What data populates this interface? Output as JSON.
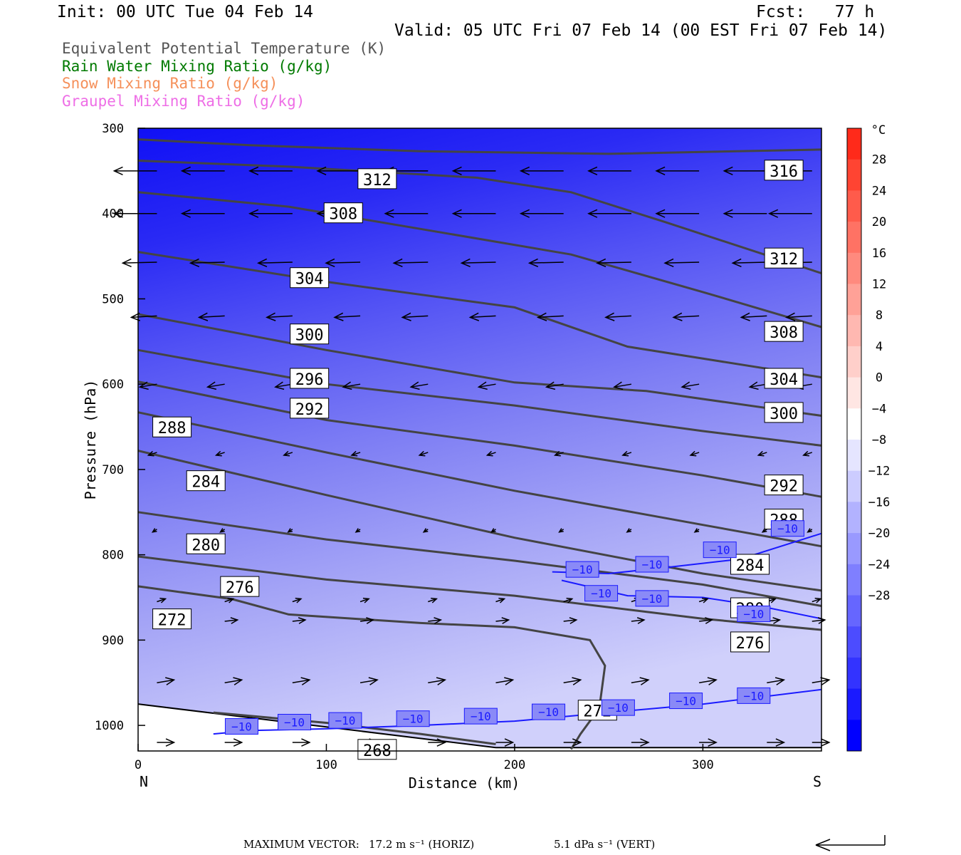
{
  "header": {
    "init": "Init: 00 UTC Tue 04 Feb 14",
    "fcst": "Fcst:   77 h",
    "valid": "Valid: 05 UTC Fri 07 Feb 14 (00 EST Fri 07 Feb 14)",
    "legend": [
      {
        "text": "Equivalent Potential Temperature (K)",
        "color": "#555555"
      },
      {
        "text": "Rain Water Mixing Ratio (g/kg)",
        "color": "#007a00"
      },
      {
        "text": "Snow Mixing Ratio (g/kg)",
        "color": "#f5905a"
      },
      {
        "text": "Graupel Mixing Ratio (g/kg)",
        "color": "#ee6ee6"
      }
    ]
  },
  "footer": {
    "max_vector_label": "MAXIMUM VECTOR:",
    "horiz": "17.2 m s⁻¹ (HORIZ)",
    "vert": "5.1 dPa s⁻¹ (VERT)"
  },
  "chart_data": {
    "type": "heatmap",
    "xlabel": "Distance (km)",
    "ylabel": "Pressure (hPa)",
    "xlim": [
      0,
      363
    ],
    "ylim": [
      1030,
      300
    ],
    "x_ticks": [
      0,
      100,
      200,
      300
    ],
    "y_ticks": [
      300,
      400,
      500,
      600,
      700,
      800,
      900,
      1000
    ],
    "x_end_labels": {
      "left": "N",
      "right": "S"
    },
    "colorbar": {
      "unit": "°C",
      "labels": [
        28,
        24,
        20,
        16,
        12,
        8,
        4,
        0,
        -4,
        -8,
        -12,
        -16,
        -20,
        -24,
        -28
      ],
      "colors": [
        "#ff2a1a",
        "#ff4432",
        "#ff5b4b",
        "#ff7264",
        "#ff8a7e",
        "#ffa197",
        "#ffb8b1",
        "#ffcfca",
        "#ffe6e3",
        "#ffffff",
        "#e5e5ff",
        "#ccccff",
        "#b2b2ff",
        "#9999ff",
        "#7f7fff",
        "#6666ff",
        "#4c4cff",
        "#3333ff",
        "#1a1aff",
        "#0000ff"
      ]
    },
    "theta_e_contours": [
      {
        "value": 316,
        "points": [
          [
            0,
            313
          ],
          [
            60,
            320
          ],
          [
            150,
            327
          ],
          [
            250,
            330
          ],
          [
            363,
            325
          ]
        ]
      },
      {
        "value": 312,
        "points": [
          [
            0,
            338
          ],
          [
            80,
            345
          ],
          [
            180,
            358
          ],
          [
            230,
            375
          ],
          [
            280,
            410
          ],
          [
            363,
            470
          ]
        ]
      },
      {
        "value": 308,
        "points": [
          [
            0,
            375
          ],
          [
            80,
            392
          ],
          [
            150,
            418
          ],
          [
            230,
            448
          ],
          [
            300,
            492
          ],
          [
            363,
            533
          ]
        ]
      },
      {
        "value": 304,
        "points": [
          [
            0,
            445
          ],
          [
            100,
            480
          ],
          [
            200,
            510
          ],
          [
            260,
            556
          ],
          [
            363,
            592
          ]
        ]
      },
      {
        "value": 300,
        "points": [
          [
            0,
            518
          ],
          [
            100,
            560
          ],
          [
            200,
            598
          ],
          [
            270,
            608
          ],
          [
            363,
            637
          ]
        ]
      },
      {
        "value": 296,
        "points": [
          [
            0,
            560
          ],
          [
            100,
            600
          ],
          [
            200,
            625
          ],
          [
            300,
            655
          ],
          [
            363,
            672
          ]
        ]
      },
      {
        "value": 292,
        "points": [
          [
            0,
            597
          ],
          [
            100,
            642
          ],
          [
            200,
            672
          ],
          [
            300,
            707
          ],
          [
            363,
            732
          ]
        ]
      },
      {
        "value": 288,
        "points": [
          [
            0,
            633
          ],
          [
            100,
            680
          ],
          [
            200,
            725
          ],
          [
            300,
            765
          ],
          [
            363,
            790
          ]
        ]
      },
      {
        "value": 284,
        "points": [
          [
            0,
            678
          ],
          [
            100,
            730
          ],
          [
            200,
            780
          ],
          [
            300,
            822
          ],
          [
            363,
            842
          ]
        ]
      },
      {
        "value": 280,
        "points": [
          [
            0,
            750
          ],
          [
            100,
            782
          ],
          [
            200,
            807
          ],
          [
            300,
            835
          ],
          [
            363,
            860
          ]
        ]
      },
      {
        "value": 276,
        "points": [
          [
            0,
            802
          ],
          [
            100,
            829
          ],
          [
            200,
            848
          ],
          [
            300,
            875
          ],
          [
            363,
            888
          ]
        ]
      },
      {
        "value": 272,
        "points": [
          [
            0,
            837
          ],
          [
            50,
            852
          ],
          [
            80,
            870
          ],
          [
            150,
            880
          ],
          [
            200,
            885
          ],
          [
            240,
            900
          ],
          [
            248,
            930
          ],
          [
            245,
            980
          ],
          [
            235,
            1010
          ],
          [
            230,
            1028
          ]
        ]
      },
      {
        "value": 268,
        "points": [
          [
            40,
            985
          ],
          [
            100,
            997
          ],
          [
            150,
            1010
          ],
          [
            190,
            1022
          ]
        ]
      }
    ],
    "theta_e_labels": [
      {
        "value": "316",
        "x": 343,
        "p": 350
      },
      {
        "value": "312",
        "x": 127,
        "p": 360
      },
      {
        "value": "312",
        "x": 343,
        "p": 453
      },
      {
        "value": "308",
        "x": 109,
        "p": 400
      },
      {
        "value": "308",
        "x": 343,
        "p": 539
      },
      {
        "value": "304",
        "x": 91,
        "p": 476
      },
      {
        "value": "304",
        "x": 343,
        "p": 594
      },
      {
        "value": "300",
        "x": 91,
        "p": 542
      },
      {
        "value": "300",
        "x": 343,
        "p": 634
      },
      {
        "value": "296",
        "x": 91,
        "p": 594
      },
      {
        "value": "292",
        "x": 91,
        "p": 629
      },
      {
        "value": "292",
        "x": 343,
        "p": 719
      },
      {
        "value": "288",
        "x": 18,
        "p": 651
      },
      {
        "value": "288",
        "x": 343,
        "p": 759
      },
      {
        "value": "284",
        "x": 36,
        "p": 714
      },
      {
        "value": "284",
        "x": 325,
        "p": 812
      },
      {
        "value": "280",
        "x": 36,
        "p": 788
      },
      {
        "value": "280",
        "x": 325,
        "p": 863
      },
      {
        "value": "276",
        "x": 54,
        "p": 838
      },
      {
        "value": "276",
        "x": 325,
        "p": 903
      },
      {
        "value": "272",
        "x": 18,
        "p": 876
      },
      {
        "value": "272",
        "x": 244,
        "p": 983
      },
      {
        "value": "268",
        "x": 127,
        "p": 1029
      }
    ],
    "isotherm_minus10": [
      [
        [
          40,
          1010
        ],
        [
          60,
          1006
        ],
        [
          100,
          1004
        ],
        [
          150,
          1000
        ],
        [
          200,
          995
        ],
        [
          250,
          985
        ],
        [
          300,
          975
        ],
        [
          363,
          958
        ]
      ],
      [
        [
          220,
          820
        ],
        [
          250,
          822
        ],
        [
          280,
          815
        ],
        [
          320,
          805
        ],
        [
          363,
          775
        ]
      ],
      [
        [
          225,
          830
        ],
        [
          260,
          848
        ],
        [
          300,
          850
        ],
        [
          330,
          860
        ],
        [
          363,
          875
        ]
      ]
    ],
    "isotherm_labels": [
      {
        "value": "−10",
        "x": 55,
        "p": 1002
      },
      {
        "value": "−10",
        "x": 83,
        "p": 997
      },
      {
        "value": "−10",
        "x": 110,
        "p": 995
      },
      {
        "value": "−10",
        "x": 146,
        "p": 993
      },
      {
        "value": "−10",
        "x": 182,
        "p": 990
      },
      {
        "value": "−10",
        "x": 218,
        "p": 985
      },
      {
        "value": "−10",
        "x": 255,
        "p": 980
      },
      {
        "value": "−10",
        "x": 291,
        "p": 972
      },
      {
        "value": "−10",
        "x": 327,
        "p": 966
      },
      {
        "value": "−10",
        "x": 236,
        "p": 818
      },
      {
        "value": "−10",
        "x": 273,
        "p": 812
      },
      {
        "value": "−10",
        "x": 309,
        "p": 795
      },
      {
        "value": "−10",
        "x": 345,
        "p": 770
      },
      {
        "value": "−10",
        "x": 246,
        "p": 846
      },
      {
        "value": "−10",
        "x": 273,
        "p": 852
      },
      {
        "value": "−10",
        "x": 327,
        "p": 870
      }
    ],
    "wind_rows": [
      {
        "p": 350,
        "u": -10,
        "w": 0
      },
      {
        "p": 400,
        "u": -10,
        "w": 0
      },
      {
        "p": 457,
        "u": -8,
        "w": -0.3
      },
      {
        "p": 520,
        "u": -6,
        "w": -0.5
      },
      {
        "p": 600,
        "u": -4,
        "w": -1.0
      },
      {
        "p": 680,
        "u": -2,
        "w": -1.0
      },
      {
        "p": 770,
        "u": -1,
        "w": -1.0
      },
      {
        "p": 855,
        "u": 2,
        "w": 1.0
      },
      {
        "p": 878,
        "u": 3,
        "w": 0.5
      },
      {
        "p": 950,
        "u": 4,
        "w": 1.0
      },
      {
        "p": 1020,
        "u": 4,
        "w": 0
      }
    ],
    "wind_x": [
      10,
      46,
      82,
      118,
      154,
      190,
      226,
      262,
      298,
      334,
      358
    ]
  }
}
